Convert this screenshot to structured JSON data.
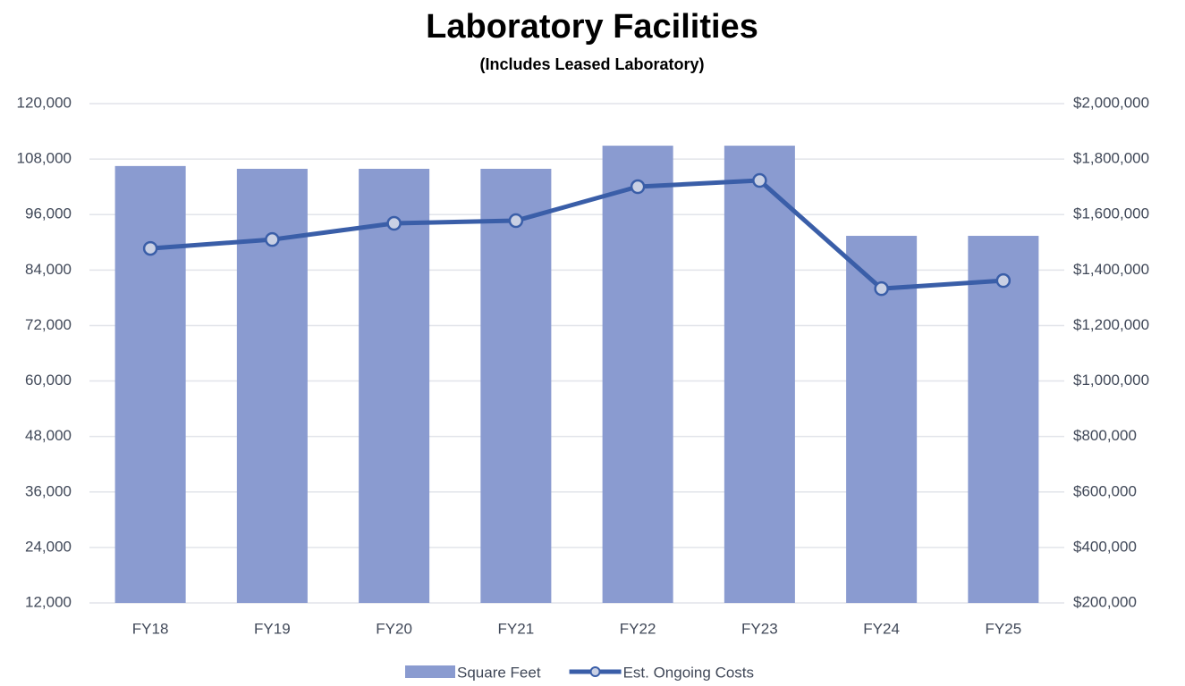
{
  "chart_data": {
    "type": "bar_line",
    "title": "Laboratory Facilities",
    "subtitle": "(Includes Leased Laboratory)",
    "categories": [
      "FY18",
      "FY19",
      "FY20",
      "FY21",
      "FY22",
      "FY23",
      "FY24",
      "FY25"
    ],
    "series": [
      {
        "name": "Square Feet",
        "type": "bar",
        "color": "#8a9bd0",
        "axis": "y",
        "values": [
          106500,
          105900,
          105900,
          105900,
          110900,
          110900,
          91400,
          91400
        ]
      },
      {
        "name": "Est. Ongoing Costs",
        "type": "line",
        "color": "#3a5ea8",
        "axis": "y2",
        "values": [
          1478000,
          1510000,
          1568500,
          1578000,
          1700500,
          1723000,
          1333000,
          1362000
        ]
      }
    ],
    "ylim": [
      12000,
      120000
    ],
    "yticks": [
      {
        "value": 12000,
        "label": "12,000"
      },
      {
        "value": 24000,
        "label": "24,000"
      },
      {
        "value": 36000,
        "label": "36,000"
      },
      {
        "value": 48000,
        "label": "48,000"
      },
      {
        "value": 60000,
        "label": "60,000"
      },
      {
        "value": 72000,
        "label": "72,000"
      },
      {
        "value": 84000,
        "label": "84,000"
      },
      {
        "value": 96000,
        "label": "96,000"
      },
      {
        "value": 108000,
        "label": "108,000"
      },
      {
        "value": 120000,
        "label": "120,000"
      }
    ],
    "y2lim": [
      200000,
      2000000
    ],
    "y2ticks": [
      {
        "value": 200000,
        "label": "$200,000"
      },
      {
        "value": 400000,
        "label": "$400,000"
      },
      {
        "value": 600000,
        "label": "$600,000"
      },
      {
        "value": 800000,
        "label": "$800,000"
      },
      {
        "value": 1000000,
        "label": "$1,000,000"
      },
      {
        "value": 1200000,
        "label": "$1,200,000"
      },
      {
        "value": 1400000,
        "label": "$1,400,000"
      },
      {
        "value": 1600000,
        "label": "$1,600,000"
      },
      {
        "value": 1800000,
        "label": "$1,800,000"
      },
      {
        "value": 2000000,
        "label": "$2,000,000"
      }
    ],
    "grid": true,
    "legend": "bottom"
  }
}
